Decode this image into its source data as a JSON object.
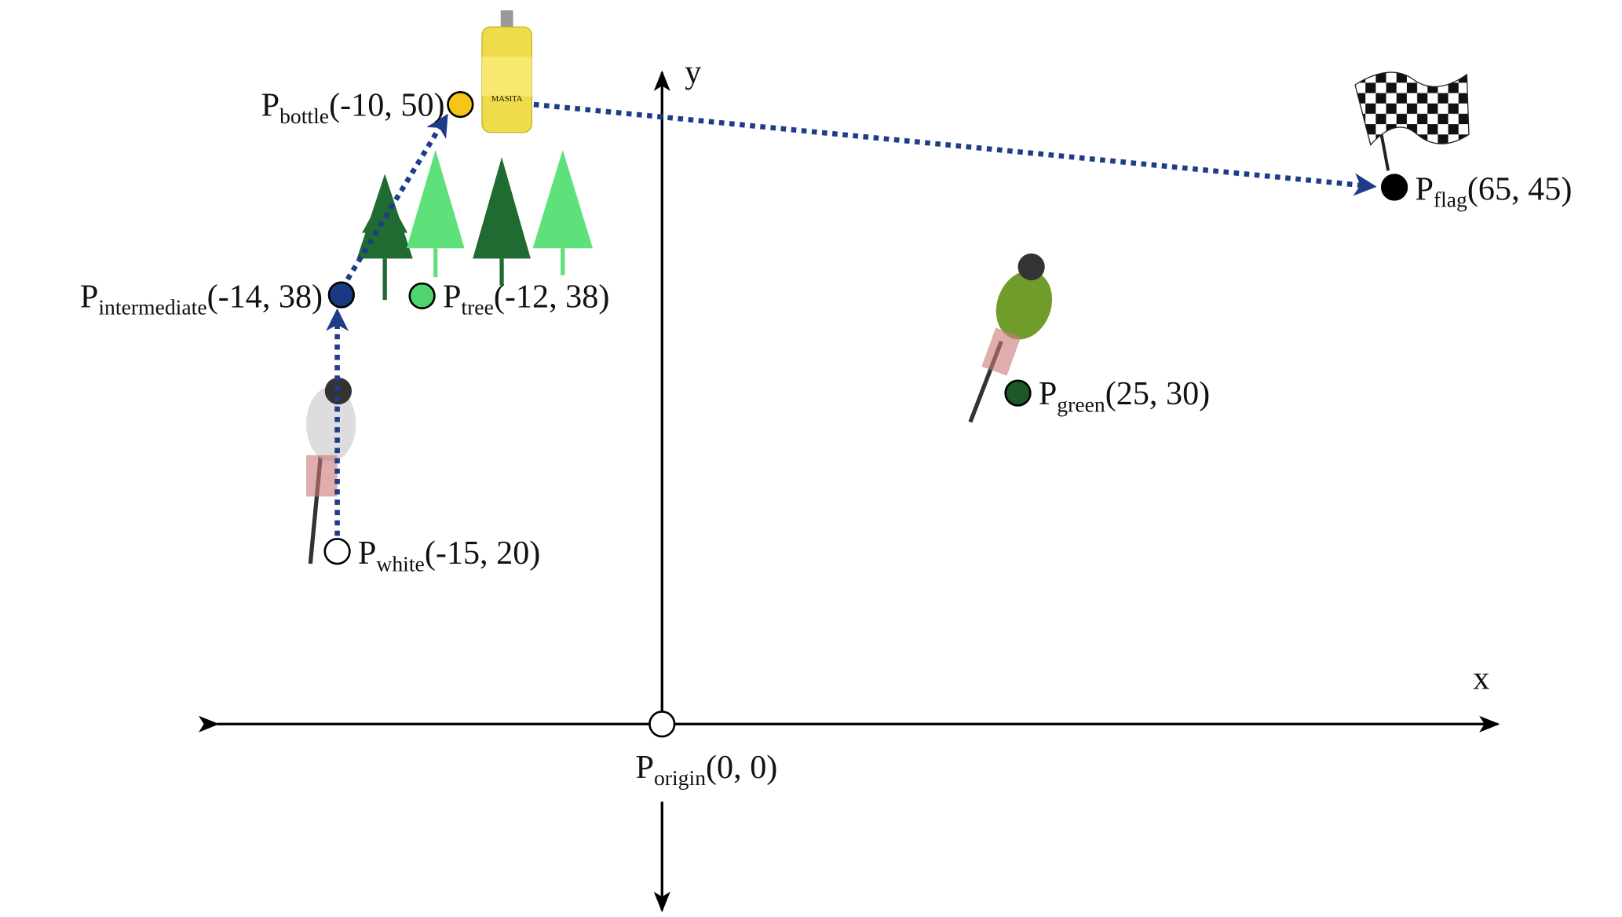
{
  "axes": {
    "x": "x",
    "y": "y"
  },
  "points": [
    {
      "name": "P",
      "sub": "bottle",
      "coords": "(-10, 50)"
    },
    {
      "name": "P",
      "sub": "intermediate",
      "coords": "(-14, 38)"
    },
    {
      "name": "P",
      "sub": "tree",
      "coords": "(-12, 38)"
    },
    {
      "name": "P",
      "sub": "white",
      "coords": "(-15, 20)"
    },
    {
      "name": "P",
      "sub": "green",
      "coords": "(25, 30)"
    },
    {
      "name": "P",
      "sub": "flag",
      "coords": "(65, 45)"
    },
    {
      "name": "P",
      "sub": "origin",
      "coords": "(0, 0)"
    }
  ]
}
